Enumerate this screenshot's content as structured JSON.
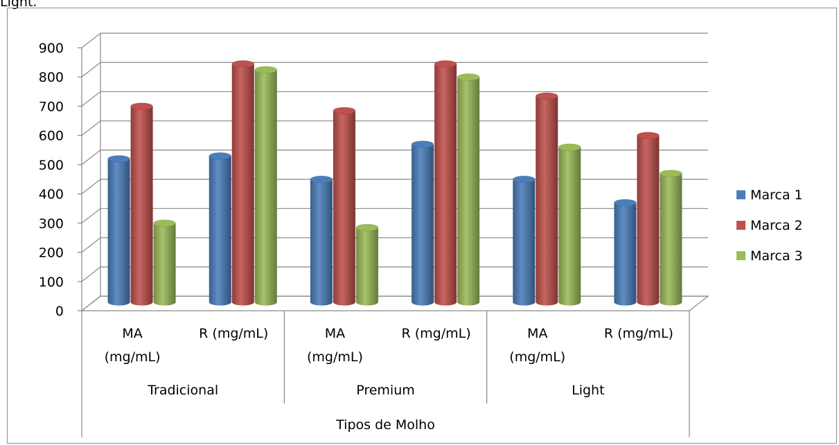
{
  "page_fragment_top": "Light.",
  "chart_data": {
    "type": "bar",
    "style": "3d-cylinder",
    "title": "",
    "xlabel": "Tipos de Molho",
    "ylabel": "",
    "ylim": [
      0,
      900
    ],
    "yticks": [
      0,
      100,
      200,
      300,
      400,
      500,
      600,
      700,
      800,
      900
    ],
    "grid": true,
    "legend_position": "right",
    "groups": [
      {
        "name": "Tradicional",
        "categories": [
          "MA\n(mg/mL)",
          "R (mg/mL)"
        ]
      },
      {
        "name": "Premium",
        "categories": [
          "MA\n(mg/mL)",
          "R (mg/mL)"
        ]
      },
      {
        "name": "Light",
        "categories": [
          "MA\n(mg/mL)",
          "R (mg/mL)"
        ]
      }
    ],
    "series": [
      {
        "name": "Marca 1",
        "color": "#4a7ebb",
        "values": [
          490,
          500,
          420,
          540,
          420,
          340
        ]
      },
      {
        "name": "Marca 2",
        "color": "#c0504d",
        "values": [
          670,
          815,
          655,
          815,
          705,
          570
        ]
      },
      {
        "name": "Marca 3",
        "color": "#9bbb59",
        "values": [
          270,
          795,
          255,
          770,
          530,
          440
        ]
      }
    ]
  }
}
